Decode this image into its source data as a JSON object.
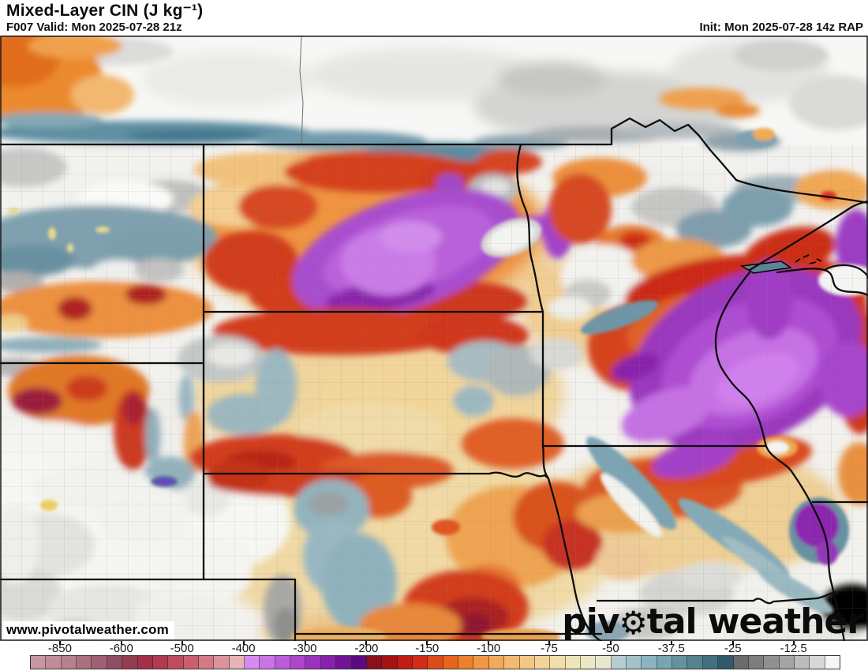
{
  "header": {
    "title": "Mixed-Layer CIN (J kg⁻¹)",
    "valid": "F007 Valid: Mon 2025-07-28 21z",
    "init": "Init: Mon 2025-07-28 14z RAP"
  },
  "map": {
    "watermark": "www.pivotalweather.com",
    "logo_prefix": "piv",
    "logo_suffix": "tal weather",
    "gear_icon": "⚙"
  },
  "colorbar": {
    "ticks": [
      {
        "label": "-850",
        "pos_pct": 3.7
      },
      {
        "label": "-600",
        "pos_pct": 11.3
      },
      {
        "label": "-500",
        "pos_pct": 18.8
      },
      {
        "label": "-400",
        "pos_pct": 26.4
      },
      {
        "label": "-300",
        "pos_pct": 34.0
      },
      {
        "label": "-200",
        "pos_pct": 41.6
      },
      {
        "label": "-150",
        "pos_pct": 49.1
      },
      {
        "label": "-100",
        "pos_pct": 56.7
      },
      {
        "label": "-75",
        "pos_pct": 64.2
      },
      {
        "label": "-50",
        "pos_pct": 71.8
      },
      {
        "label": "-37.5",
        "pos_pct": 79.3
      },
      {
        "label": "-25",
        "pos_pct": 86.9
      },
      {
        "label": "-12.5",
        "pos_pct": 94.4
      }
    ],
    "cells": [
      "#c997a3",
      "#c18d99",
      "#b7808d",
      "#ab7080",
      "#9e6072",
      "#8f4e62",
      "#933c50",
      "#a33048",
      "#b23a4e",
      "#bf4c5e",
      "#ca5f6e",
      "#d27a85",
      "#dc949d",
      "#e7b2b8",
      "#d78bef",
      "#cb74e7",
      "#bd5cdb",
      "#ad46cd",
      "#9b32bd",
      "#8822ac",
      "#731496",
      "#5c0a7e",
      "#8c0f1e",
      "#a61214",
      "#c11d12",
      "#d42b15",
      "#df4a1a",
      "#e8651e",
      "#ee7f2b",
      "#f29747",
      "#f3aa5c",
      "#f3ba72",
      "#f2c887",
      "#f1d49b",
      "#f0deac",
      "#efe5ba",
      "#ece8c6",
      "#e9e7cd",
      "#b6cdd3",
      "#a3c2ca",
      "#8db3be",
      "#79a4b2",
      "#66929f",
      "#54828f",
      "#44707e",
      "#32596b",
      "#6b6b6b",
      "#7d7d7d",
      "#909090",
      "#a4a4a4",
      "#bcbcbc",
      "#d8d8d8",
      "#f6f6f6"
    ]
  }
}
